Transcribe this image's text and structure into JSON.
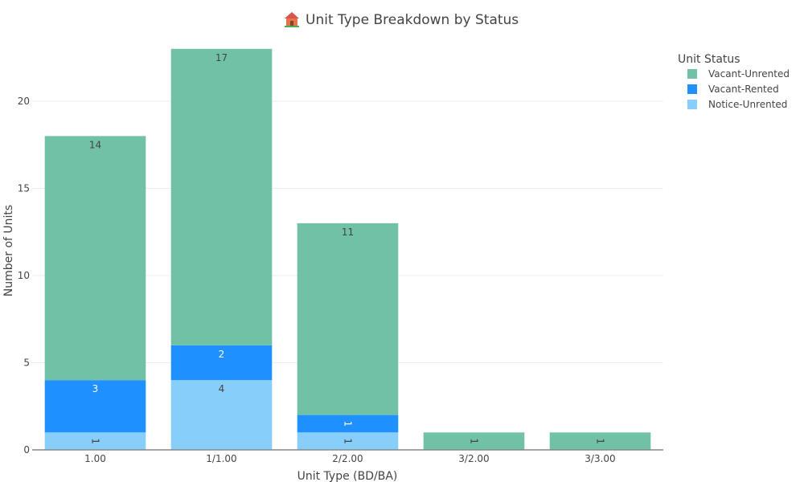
{
  "chart_data": {
    "type": "bar",
    "stacked": true,
    "title": "Unit Type Breakdown by Status",
    "title_icon": "house-icon",
    "xlabel": "Unit Type (BD/BA)",
    "ylabel": "Number of Units",
    "categories": [
      "1.00",
      "1/1.00",
      "2/2.00",
      "3/2.00",
      "3/3.00"
    ],
    "ylim": [
      0,
      23.5
    ],
    "yticks": [
      0,
      5,
      10,
      15,
      20
    ],
    "grid": true,
    "legend_title": "Unit Status",
    "legend_placement": "top-right",
    "series": [
      {
        "name": "Notice-Unrented",
        "color": "#87CEFA",
        "values": [
          1,
          4,
          1,
          0,
          0
        ],
        "labels": [
          "1",
          "4",
          "1",
          "",
          ""
        ]
      },
      {
        "name": "Vacant-Rented",
        "color": "#1E90FF",
        "values": [
          3,
          2,
          1,
          0,
          0
        ],
        "labels": [
          "3",
          "2",
          "1",
          "",
          ""
        ]
      },
      {
        "name": "Vacant-Unrented",
        "color": "#71C1A7",
        "values": [
          14,
          17,
          11,
          1,
          1
        ],
        "labels": [
          "14",
          "17",
          "11",
          "1",
          "1"
        ]
      }
    ],
    "legend_order": [
      "Vacant-Unrented",
      "Vacant-Rented",
      "Notice-Unrented"
    ]
  }
}
